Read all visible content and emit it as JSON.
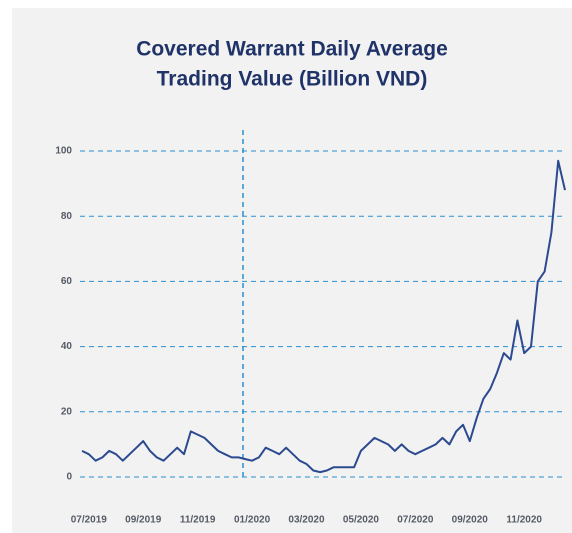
{
  "chart_data": {
    "type": "line",
    "title": [
      "Covered Warrant Daily Average",
      "Trading Value (Billion VND)"
    ],
    "categories": [
      null,
      "07/2019",
      null,
      null,
      null,
      null,
      null,
      null,
      null,
      "09/2019",
      null,
      null,
      null,
      null,
      null,
      null,
      null,
      "11/2019",
      null,
      null,
      null,
      null,
      null,
      null,
      null,
      "01/2020",
      null,
      null,
      null,
      null,
      null,
      null,
      null,
      "03/2020",
      null,
      null,
      null,
      null,
      null,
      null,
      null,
      "05/2020",
      null,
      null,
      null,
      null,
      null,
      null,
      null,
      "07/2020",
      null,
      null,
      null,
      null,
      null,
      null,
      null,
      "09/2020",
      null,
      null,
      null,
      null,
      null,
      null,
      null,
      "11/2020",
      null,
      null,
      null,
      null,
      null,
      null
    ],
    "series": [
      {
        "name": "Trading Value",
        "color": "#2c4a90",
        "values": [
          8,
          7,
          5,
          6,
          8,
          7,
          5,
          7,
          9,
          11,
          8,
          6,
          5,
          7,
          9,
          7,
          14,
          13,
          12,
          10,
          8,
          7,
          6,
          6,
          5.5,
          5,
          6,
          9,
          8,
          7,
          9,
          7,
          5,
          4,
          2,
          1.5,
          2,
          3,
          3,
          3,
          3,
          8,
          10,
          12,
          11,
          10,
          8,
          10,
          8,
          7,
          8,
          9,
          10,
          12,
          10,
          14,
          16,
          11,
          18,
          24,
          27,
          32,
          38,
          36,
          48,
          38,
          40,
          60,
          63,
          75,
          97,
          88
        ]
      }
    ],
    "ylim": [
      0,
      100
    ],
    "yticks": [
      0,
      20,
      40,
      60,
      80,
      100
    ],
    "grid": true
  }
}
